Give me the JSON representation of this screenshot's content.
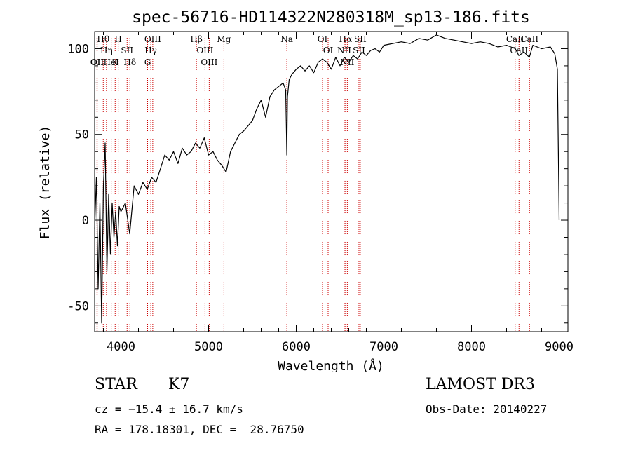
{
  "chart_data": {
    "type": "line",
    "title": "spec-56716-HD114322N280318M_sp13-186.fits",
    "xlabel": "Wavelength (Å)",
    "ylabel": "Flux (relative)",
    "xlim": [
      3700,
      9100
    ],
    "ylim": [
      -65,
      110
    ],
    "xticks": [
      4000,
      5000,
      6000,
      7000,
      8000,
      9000
    ],
    "yticks": [
      -50,
      0,
      50,
      100
    ],
    "grid": false,
    "series": [
      {
        "name": "spectrum",
        "x": [
          3700,
          3720,
          3740,
          3760,
          3780,
          3800,
          3820,
          3840,
          3860,
          3880,
          3900,
          3920,
          3940,
          3960,
          3980,
          4000,
          4050,
          4100,
          4150,
          4200,
          4250,
          4300,
          4350,
          4400,
          4450,
          4500,
          4550,
          4600,
          4650,
          4700,
          4750,
          4800,
          4850,
          4900,
          4950,
          5000,
          5050,
          5100,
          5150,
          5200,
          5250,
          5300,
          5350,
          5400,
          5450,
          5500,
          5550,
          5600,
          5650,
          5700,
          5750,
          5800,
          5850,
          5880,
          5893,
          5900,
          5920,
          5950,
          6000,
          6050,
          6100,
          6150,
          6200,
          6250,
          6300,
          6350,
          6400,
          6450,
          6500,
          6550,
          6600,
          6650,
          6700,
          6750,
          6800,
          6850,
          6900,
          6950,
          7000,
          7100,
          7200,
          7300,
          7400,
          7500,
          7600,
          7700,
          7800,
          7900,
          8000,
          8100,
          8200,
          8300,
          8400,
          8500,
          8540,
          8600,
          8660,
          8700,
          8800,
          8900,
          8950,
          8980,
          9000
        ],
        "values": [
          -5,
          25,
          -40,
          10,
          -60,
          20,
          45,
          -30,
          15,
          -20,
          10,
          -10,
          5,
          -15,
          8,
          5,
          10,
          -8,
          20,
          15,
          22,
          18,
          25,
          22,
          30,
          38,
          35,
          40,
          33,
          42,
          38,
          40,
          45,
          42,
          48,
          38,
          40,
          35,
          32,
          28,
          40,
          45,
          50,
          52,
          55,
          58,
          65,
          70,
          60,
          72,
          76,
          78,
          80,
          76,
          38,
          72,
          82,
          85,
          88,
          90,
          87,
          90,
          86,
          92,
          94,
          92,
          88,
          95,
          90,
          95,
          92,
          96,
          94,
          98,
          96,
          99,
          100,
          98,
          102,
          103,
          104,
          103,
          106,
          105,
          108,
          106,
          105,
          104,
          103,
          104,
          103,
          101,
          102,
          100,
          96,
          98,
          95,
          102,
          100,
          101,
          97,
          88,
          0
        ]
      }
    ],
    "line_markers": [
      {
        "label": "Hθ",
        "x": 3798
      },
      {
        "label": "Hη",
        "x": 3835
      },
      {
        "label": "OII",
        "x": 3727
      },
      {
        "label": "OII",
        "x": 3729
      },
      {
        "label": "HeI",
        "x": 3889
      },
      {
        "label": "K",
        "x": 3934
      },
      {
        "label": "H",
        "x": 3969
      },
      {
        "label": "SII",
        "x": 4070
      },
      {
        "label": "Hδ",
        "x": 4102
      },
      {
        "label": "OIII",
        "x": 4363
      },
      {
        "label": "Hγ",
        "x": 4341
      },
      {
        "label": "G",
        "x": 4304
      },
      {
        "label": "Hβ",
        "x": 4861
      },
      {
        "label": "OIII",
        "x": 4959
      },
      {
        "label": "OIII",
        "x": 5007
      },
      {
        "label": "Mg",
        "x": 5175
      },
      {
        "label": "Na",
        "x": 5893
      },
      {
        "label": "OI",
        "x": 6300
      },
      {
        "label": "OI",
        "x": 6364
      },
      {
        "label": "Hα",
        "x": 6563
      },
      {
        "label": "NII",
        "x": 6548
      },
      {
        "label": "NII",
        "x": 6583
      },
      {
        "label": "SII",
        "x": 6716
      },
      {
        "label": "SII",
        "x": 6731
      },
      {
        "label": "CaII",
        "x": 8498
      },
      {
        "label": "CaII",
        "x": 8542
      },
      {
        "label": "CaII",
        "x": 8662
      }
    ]
  },
  "info": {
    "object_class": "STAR",
    "subclass": "K7",
    "survey": "LAMOST DR3",
    "cz": "cz = −15.4 ± 16.7 km/s",
    "obs_date": "Obs-Date: 20140227",
    "radec": "RA = 178.18301, DEC =  28.76750"
  },
  "colors": {
    "axis": "#000000",
    "spectrum": "#000000",
    "marker_line": "#cc0000"
  }
}
